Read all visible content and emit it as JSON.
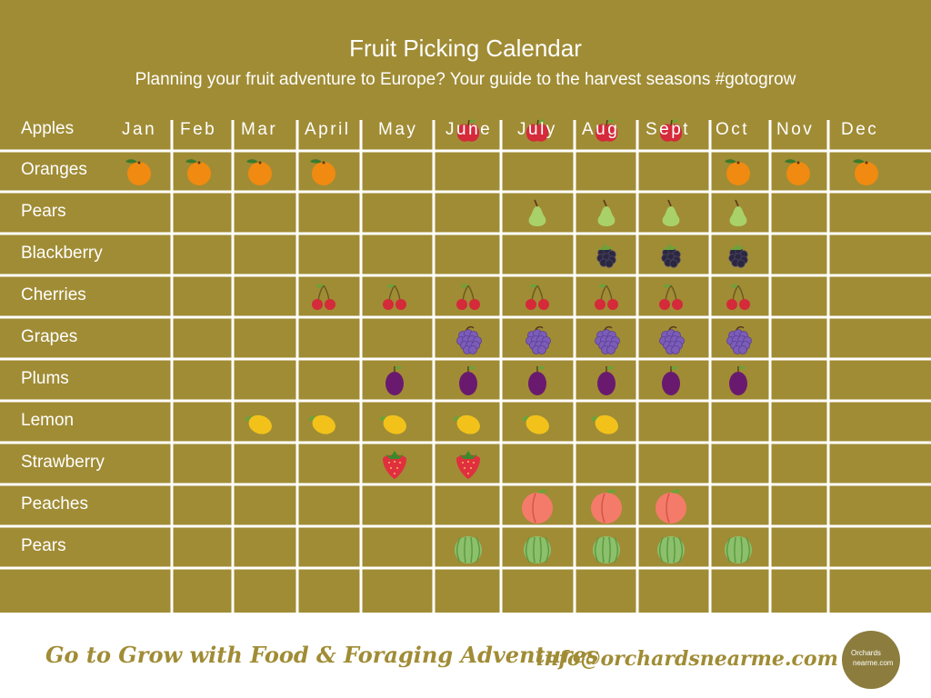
{
  "calendar": {
    "title": "Fruit Picking Calendar",
    "subtitle": "Planning your fruit adventure to Europe? Your guide to the harvest seasons  #gotogrow",
    "months": [
      "Jan",
      "Feb",
      "Mar",
      "April",
      "May",
      "June",
      "July",
      "Aug",
      "Sept",
      "Oct",
      "Nov",
      "Dec"
    ],
    "rows": [
      {
        "label": "Apples",
        "icon": "apple-icon",
        "months": [
          6,
          7,
          8,
          9
        ]
      },
      {
        "label": "Oranges",
        "icon": "orange-icon",
        "months": [
          1,
          2,
          3,
          4,
          10,
          11,
          12
        ]
      },
      {
        "label": "Pears",
        "icon": "pear-icon",
        "months": [
          7,
          8,
          9,
          10
        ]
      },
      {
        "label": "Blackberry",
        "icon": "blackberry-icon",
        "months": [
          8,
          9,
          10
        ]
      },
      {
        "label": "Cherries",
        "icon": "cherries-icon",
        "months": [
          4,
          5,
          6,
          7,
          8,
          9,
          10
        ]
      },
      {
        "label": "Grapes",
        "icon": "grapes-icon",
        "months": [
          6,
          7,
          8,
          9,
          10
        ]
      },
      {
        "label": "Plums",
        "icon": "plum-icon",
        "months": [
          5,
          6,
          7,
          8,
          9,
          10
        ]
      },
      {
        "label": "Lemon",
        "icon": "lemon-icon",
        "months": [
          3,
          4,
          5,
          6,
          7,
          8
        ]
      },
      {
        "label": "Strawberry",
        "icon": "strawberry-icon",
        "months": [
          5,
          6
        ]
      },
      {
        "label": "Peaches",
        "icon": "peach-icon",
        "months": [
          7,
          8,
          9
        ]
      },
      {
        "label": "Pears",
        "icon": "melon-icon",
        "months": [
          6,
          7,
          8,
          9,
          10
        ]
      }
    ]
  },
  "footer": {
    "tagline": "Go to Grow with Food & Foraging Adventures",
    "email": "info@orchardsnearme.com",
    "logo_line1": "Orchards",
    "logo_line2": "nearme.com"
  },
  "colors": {
    "background": "#a08c35",
    "grid_lines": "#ffffff",
    "text": "#ffffff"
  }
}
